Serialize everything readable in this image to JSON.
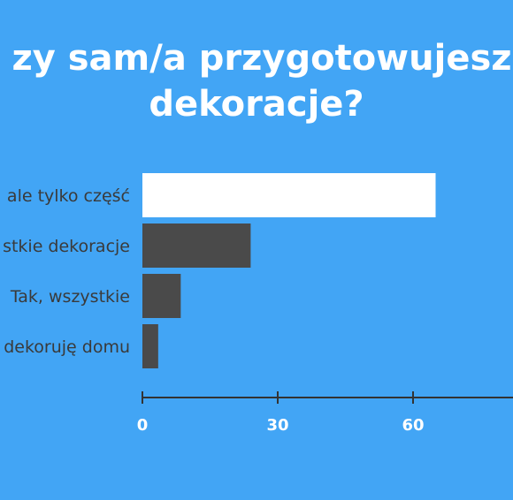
{
  "title": {
    "line1": "zy sam/a przygotowujesz",
    "line2": "dekoracje?"
  },
  "colors": {
    "background": "#42a5f5",
    "highlight_bar": "#ffffff",
    "bar": "#4a4a4a",
    "axis": "#333333",
    "tick_text": "#ffffff"
  },
  "chart_data": {
    "type": "bar",
    "orientation": "horizontal",
    "categories": [
      "ale tylko część",
      "stkie dekoracje",
      "Tak, wszystkie",
      "dekoruję domu"
    ],
    "values": [
      65,
      24,
      8.5,
      3.5
    ],
    "xticks": [
      "0",
      "30",
      "60"
    ],
    "xlim": [
      0,
      90
    ],
    "grid": false
  }
}
